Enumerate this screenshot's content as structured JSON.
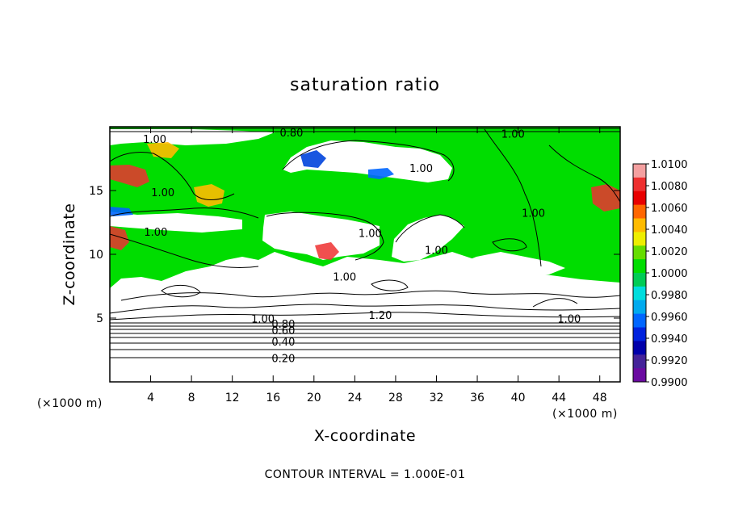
{
  "chart_data": {
    "type": "heatmap",
    "title": "saturation ratio",
    "xlabel": "X-coordinate",
    "ylabel": "Z-coordinate",
    "x_unit": "(×1000 m)",
    "z_unit": "(×1000 m)",
    "xlim": [
      0,
      50
    ],
    "ylim": [
      0,
      20
    ],
    "x_ticks": [
      4,
      8,
      12,
      16,
      20,
      24,
      28,
      32,
      36,
      40,
      44,
      48
    ],
    "y_ticks": [
      5,
      10,
      15
    ],
    "footer": "CONTOUR INTERVAL = 1.000E-01",
    "colorbar": {
      "ticks": [
        "1.0100",
        "1.0080",
        "1.0060",
        "1.0040",
        "1.0020",
        "1.0000",
        "0.9980",
        "0.9960",
        "0.9940",
        "0.9920",
        "0.9900"
      ],
      "colors": [
        "#f4a0a0",
        "#ee3030",
        "#e80000",
        "#ff6600",
        "#ffbb00",
        "#eeee00",
        "#66dd00",
        "#00dd00",
        "#00cc55",
        "#00dddd",
        "#00aaee",
        "#0066ff",
        "#0022dd",
        "#0000aa",
        "#442299",
        "#6a0aa0"
      ]
    },
    "contour_labels": [
      {
        "text": "0.80",
        "x": 17.8,
        "z": 19.5
      },
      {
        "text": "1.00",
        "x": 4.4,
        "z": 19.0
      },
      {
        "text": "1.00",
        "x": 39.5,
        "z": 19.4
      },
      {
        "text": "1.00",
        "x": 30.5,
        "z": 16.7
      },
      {
        "text": "1.00",
        "x": 5.2,
        "z": 14.8
      },
      {
        "text": "1.00",
        "x": 41.5,
        "z": 13.2
      },
      {
        "text": "1.00",
        "x": 4.5,
        "z": 11.7
      },
      {
        "text": "1.00",
        "x": 25.5,
        "z": 11.6
      },
      {
        "text": "1.00",
        "x": 32.0,
        "z": 10.3
      },
      {
        "text": "1.00",
        "x": 23.0,
        "z": 8.2
      },
      {
        "text": "1.20",
        "x": 26.5,
        "z": 5.2
      },
      {
        "text": "1.00",
        "x": 15.0,
        "z": 4.9
      },
      {
        "text": "1.00",
        "x": 45.0,
        "z": 4.9
      },
      {
        "text": "0.60",
        "x": 17.0,
        "z": 4.0
      },
      {
        "text": "0.80",
        "x": 17.0,
        "z": 4.5
      },
      {
        "text": "0.40",
        "x": 17.0,
        "z": 3.1
      },
      {
        "text": "0.20",
        "x": 17.0,
        "z": 1.8
      }
    ]
  }
}
